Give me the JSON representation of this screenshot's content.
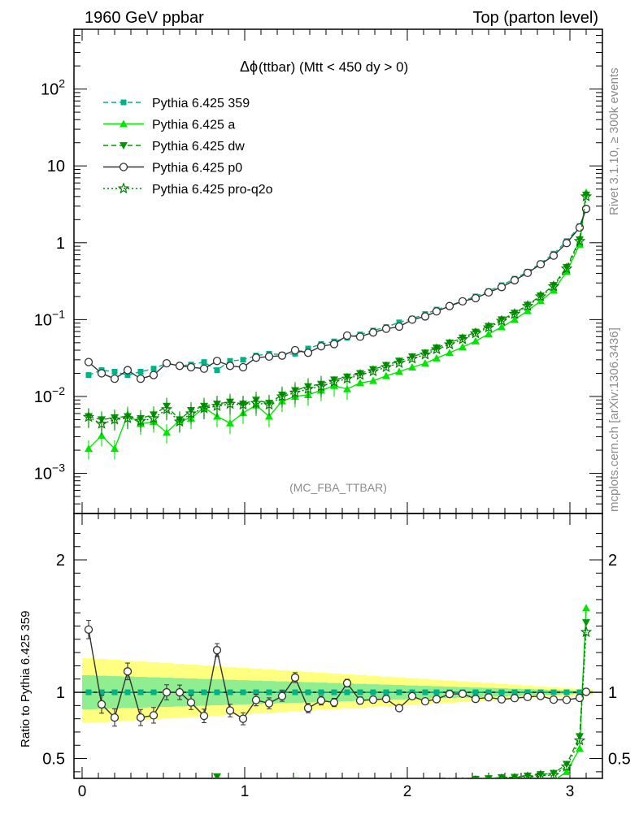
{
  "header": {
    "left": "1960 GeV ppbar",
    "right": "Top (parton level)"
  },
  "side": {
    "rivet": "Rivet 3.1.10, ≥ 300k events",
    "mcplots": "mcplots.cern.ch [arXiv:1306.3436]"
  },
  "plot": {
    "title_symbol": "Δϕ",
    "title_rest": " (ttbar) (Mtt < 450 dy > 0)",
    "analysis": "(MC_FBA_TTBAR)",
    "ratio_ylabel": "Ratio to Pythia 6.425 359"
  },
  "chart_data": {
    "type": "line",
    "x": [
      0.04,
      0.12,
      0.2,
      0.28,
      0.36,
      0.44,
      0.52,
      0.6,
      0.67,
      0.75,
      0.83,
      0.91,
      0.99,
      1.07,
      1.15,
      1.23,
      1.31,
      1.39,
      1.47,
      1.55,
      1.63,
      1.71,
      1.79,
      1.87,
      1.95,
      2.03,
      2.11,
      2.18,
      2.26,
      2.34,
      2.42,
      2.5,
      2.58,
      2.66,
      2.74,
      2.82,
      2.9,
      2.98,
      3.06,
      3.1
    ],
    "xlim": [
      -0.05,
      3.2
    ],
    "xticks": [
      "0",
      "1",
      "2",
      "3"
    ],
    "log_y": true,
    "ylim": [
      0.0003,
      600
    ],
    "yticks": [
      "10^-3",
      "10^-2",
      "10^-1",
      "1",
      "10",
      "10^2"
    ],
    "ratio_ylim": [
      0.35,
      2.35
    ],
    "ratio_yticks": [
      "0.5",
      "1",
      "2"
    ],
    "legend": "top-left",
    "series": [
      {
        "name": "Pythia 6.425 359",
        "color": "#00b386",
        "marker": "square",
        "dash": "dashed",
        "values": [
          0.019,
          0.022,
          0.021,
          0.019,
          0.021,
          0.023,
          0.027,
          0.025,
          0.026,
          0.028,
          0.022,
          0.029,
          0.03,
          0.034,
          0.036,
          0.035,
          0.036,
          0.042,
          0.048,
          0.052,
          0.058,
          0.064,
          0.072,
          0.08,
          0.092,
          0.103,
          0.118,
          0.135,
          0.152,
          0.175,
          0.2,
          0.235,
          0.28,
          0.34,
          0.42,
          0.54,
          0.72,
          1.05,
          1.65,
          2.75
        ]
      },
      {
        "name": "Pythia 6.425 a",
        "color": "#00e600",
        "marker": "triangle-up",
        "dash": "solid",
        "values": [
          0.0021,
          0.0031,
          0.0021,
          0.0058,
          0.0044,
          0.0047,
          0.0034,
          0.0049,
          0.0052,
          0.0072,
          0.0055,
          0.0045,
          0.0061,
          0.0077,
          0.0055,
          0.0087,
          0.01,
          0.0105,
          0.012,
          0.0138,
          0.0125,
          0.015,
          0.016,
          0.0185,
          0.021,
          0.024,
          0.027,
          0.0315,
          0.037,
          0.044,
          0.0525,
          0.065,
          0.08,
          0.1,
          0.13,
          0.175,
          0.24,
          0.42,
          0.95,
          4.5
        ]
      },
      {
        "name": "Pythia 6.425 dw",
        "color": "#009900",
        "marker": "triangle-down",
        "dash": "dashed",
        "values": [
          0.0055,
          0.005,
          0.0053,
          0.0055,
          0.0052,
          0.0058,
          0.0075,
          0.005,
          0.0066,
          0.0075,
          0.008,
          0.0085,
          0.008,
          0.009,
          0.0082,
          0.0105,
          0.012,
          0.0135,
          0.0145,
          0.0165,
          0.018,
          0.02,
          0.0225,
          0.0255,
          0.029,
          0.033,
          0.037,
          0.043,
          0.05,
          0.058,
          0.069,
          0.082,
          0.1,
          0.122,
          0.155,
          0.205,
          0.28,
          0.48,
          1.1,
          4.2
        ]
      },
      {
        "name": "Pythia 6.425 p0",
        "color": "#333333",
        "marker": "circle-open",
        "dash": "solid",
        "values": [
          0.028,
          0.02,
          0.017,
          0.022,
          0.017,
          0.019,
          0.027,
          0.025,
          0.024,
          0.023,
          0.029,
          0.025,
          0.024,
          0.032,
          0.033,
          0.034,
          0.04,
          0.037,
          0.045,
          0.048,
          0.062,
          0.06,
          0.068,
          0.076,
          0.081,
          0.1,
          0.11,
          0.128,
          0.15,
          0.173,
          0.19,
          0.226,
          0.265,
          0.325,
          0.405,
          0.525,
          0.68,
          0.99,
          1.58,
          2.76
        ]
      },
      {
        "name": "Pythia 6.425 pro-q2o",
        "color": "#007f00",
        "marker": "star-open",
        "dash": "dotted",
        "values": [
          0.0054,
          0.0044,
          0.005,
          0.0052,
          0.0048,
          0.0052,
          0.0068,
          0.0047,
          0.006,
          0.007,
          0.0075,
          0.008,
          0.0078,
          0.0082,
          0.0078,
          0.01,
          0.0112,
          0.0125,
          0.0135,
          0.0155,
          0.017,
          0.019,
          0.0212,
          0.024,
          0.0272,
          0.031,
          0.035,
          0.041,
          0.0475,
          0.0555,
          0.066,
          0.079,
          0.096,
          0.118,
          0.15,
          0.2,
          0.27,
          0.46,
          1.05,
          4.0
        ]
      }
    ]
  }
}
